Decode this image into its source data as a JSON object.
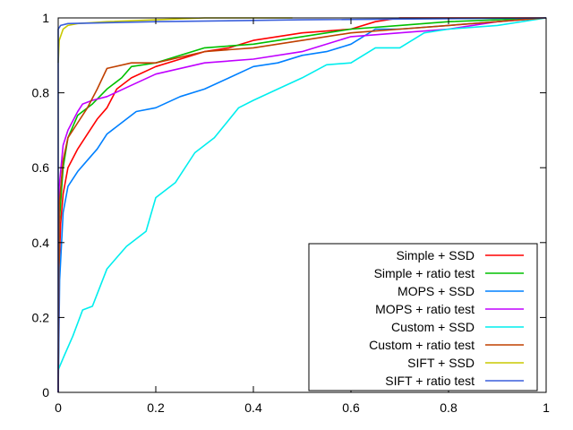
{
  "chart_data": {
    "type": "line",
    "title": "",
    "xlabel": "",
    "ylabel": "",
    "xlim": [
      0,
      1
    ],
    "ylim": [
      0,
      1
    ],
    "grid": false,
    "legend_position": "bottom-right",
    "x_ticks": [
      "0",
      "0.2",
      "0.4",
      "0.6",
      "0.8",
      "1"
    ],
    "y_ticks": [
      "0",
      "0.2",
      "0.4",
      "0.6",
      "0.8",
      "1"
    ],
    "series": [
      {
        "name": "Simple + SSD",
        "color": "#ff0000",
        "points": [
          [
            0,
            0
          ],
          [
            0.002,
            0.34
          ],
          [
            0.005,
            0.45
          ],
          [
            0.01,
            0.53
          ],
          [
            0.02,
            0.6
          ],
          [
            0.04,
            0.65
          ],
          [
            0.06,
            0.69
          ],
          [
            0.08,
            0.73
          ],
          [
            0.1,
            0.76
          ],
          [
            0.12,
            0.81
          ],
          [
            0.15,
            0.84
          ],
          [
            0.2,
            0.87
          ],
          [
            0.25,
            0.89
          ],
          [
            0.3,
            0.91
          ],
          [
            0.35,
            0.92
          ],
          [
            0.4,
            0.94
          ],
          [
            0.5,
            0.96
          ],
          [
            0.6,
            0.97
          ],
          [
            0.65,
            0.99
          ],
          [
            0.7,
            1.0
          ],
          [
            1,
            1
          ]
        ]
      },
      {
        "name": "Simple + ratio test",
        "color": "#00c000",
        "points": [
          [
            0,
            0
          ],
          [
            0.002,
            0.45
          ],
          [
            0.01,
            0.6
          ],
          [
            0.02,
            0.68
          ],
          [
            0.04,
            0.74
          ],
          [
            0.07,
            0.77
          ],
          [
            0.1,
            0.81
          ],
          [
            0.13,
            0.84
          ],
          [
            0.15,
            0.87
          ],
          [
            0.2,
            0.88
          ],
          [
            0.3,
            0.92
          ],
          [
            0.4,
            0.93
          ],
          [
            0.5,
            0.95
          ],
          [
            0.6,
            0.97
          ],
          [
            0.7,
            0.98
          ],
          [
            0.8,
            0.99
          ],
          [
            1,
            1
          ]
        ]
      },
      {
        "name": "MOPS + SSD",
        "color": "#0080ff",
        "points": [
          [
            0,
            0
          ],
          [
            0.003,
            0.3
          ],
          [
            0.01,
            0.48
          ],
          [
            0.02,
            0.55
          ],
          [
            0.04,
            0.59
          ],
          [
            0.06,
            0.62
          ],
          [
            0.08,
            0.65
          ],
          [
            0.1,
            0.69
          ],
          [
            0.13,
            0.72
          ],
          [
            0.16,
            0.75
          ],
          [
            0.2,
            0.76
          ],
          [
            0.25,
            0.79
          ],
          [
            0.3,
            0.81
          ],
          [
            0.35,
            0.84
          ],
          [
            0.4,
            0.87
          ],
          [
            0.45,
            0.88
          ],
          [
            0.5,
            0.9
          ],
          [
            0.55,
            0.91
          ],
          [
            0.6,
            0.93
          ],
          [
            0.65,
            0.97
          ],
          [
            0.7,
            0.97
          ],
          [
            0.8,
            0.98
          ],
          [
            0.9,
            0.99
          ],
          [
            1,
            1
          ]
        ]
      },
      {
        "name": "MOPS + ratio test",
        "color": "#c000ff",
        "points": [
          [
            0,
            0
          ],
          [
            0.002,
            0.55
          ],
          [
            0.01,
            0.66
          ],
          [
            0.02,
            0.7
          ],
          [
            0.04,
            0.75
          ],
          [
            0.05,
            0.77
          ],
          [
            0.07,
            0.78
          ],
          [
            0.1,
            0.79
          ],
          [
            0.15,
            0.82
          ],
          [
            0.2,
            0.85
          ],
          [
            0.3,
            0.88
          ],
          [
            0.4,
            0.89
          ],
          [
            0.5,
            0.91
          ],
          [
            0.6,
            0.95
          ],
          [
            0.7,
            0.96
          ],
          [
            0.8,
            0.97
          ],
          [
            0.9,
            0.99
          ],
          [
            1,
            1
          ]
        ]
      },
      {
        "name": "Custom + SSD",
        "color": "#00eeee",
        "points": [
          [
            0,
            0.06
          ],
          [
            0.013,
            0.1
          ],
          [
            0.03,
            0.15
          ],
          [
            0.05,
            0.22
          ],
          [
            0.07,
            0.23
          ],
          [
            0.1,
            0.33
          ],
          [
            0.14,
            0.39
          ],
          [
            0.18,
            0.43
          ],
          [
            0.2,
            0.52
          ],
          [
            0.24,
            0.56
          ],
          [
            0.28,
            0.64
          ],
          [
            0.32,
            0.68
          ],
          [
            0.37,
            0.76
          ],
          [
            0.4,
            0.78
          ],
          [
            0.45,
            0.81
          ],
          [
            0.5,
            0.84
          ],
          [
            0.55,
            0.875
          ],
          [
            0.6,
            0.88
          ],
          [
            0.65,
            0.92
          ],
          [
            0.7,
            0.92
          ],
          [
            0.75,
            0.96
          ],
          [
            0.8,
            0.97
          ],
          [
            0.9,
            0.98
          ],
          [
            1,
            1
          ]
        ]
      },
      {
        "name": "Custom + ratio test",
        "color": "#c04000",
        "points": [
          [
            0,
            0
          ],
          [
            0.002,
            0.5
          ],
          [
            0.01,
            0.62
          ],
          [
            0.02,
            0.68
          ],
          [
            0.04,
            0.72
          ],
          [
            0.06,
            0.76
          ],
          [
            0.08,
            0.81
          ],
          [
            0.1,
            0.865
          ],
          [
            0.15,
            0.88
          ],
          [
            0.2,
            0.88
          ],
          [
            0.3,
            0.91
          ],
          [
            0.4,
            0.92
          ],
          [
            0.5,
            0.94
          ],
          [
            0.6,
            0.96
          ],
          [
            0.7,
            0.97
          ],
          [
            0.8,
            0.98
          ],
          [
            0.9,
            0.99
          ],
          [
            1,
            1
          ]
        ]
      },
      {
        "name": "SIFT + SSD",
        "color": "#c8c800",
        "points": [
          [
            0,
            0.88
          ],
          [
            0.002,
            0.94
          ],
          [
            0.01,
            0.97
          ],
          [
            0.02,
            0.98
          ],
          [
            0.04,
            0.985
          ],
          [
            0.1,
            0.99
          ],
          [
            0.2,
            0.995
          ],
          [
            0.3,
            1
          ],
          [
            0.48,
            1
          ]
        ]
      },
      {
        "name": "SIFT + ratio test",
        "color": "#3a5fdc",
        "points": [
          [
            0,
            0
          ],
          [
            0,
            0.97
          ],
          [
            0.005,
            0.98
          ],
          [
            0.02,
            0.985
          ],
          [
            0.2,
            0.99
          ],
          [
            0.5,
            0.995
          ],
          [
            1,
            1
          ]
        ]
      }
    ]
  }
}
